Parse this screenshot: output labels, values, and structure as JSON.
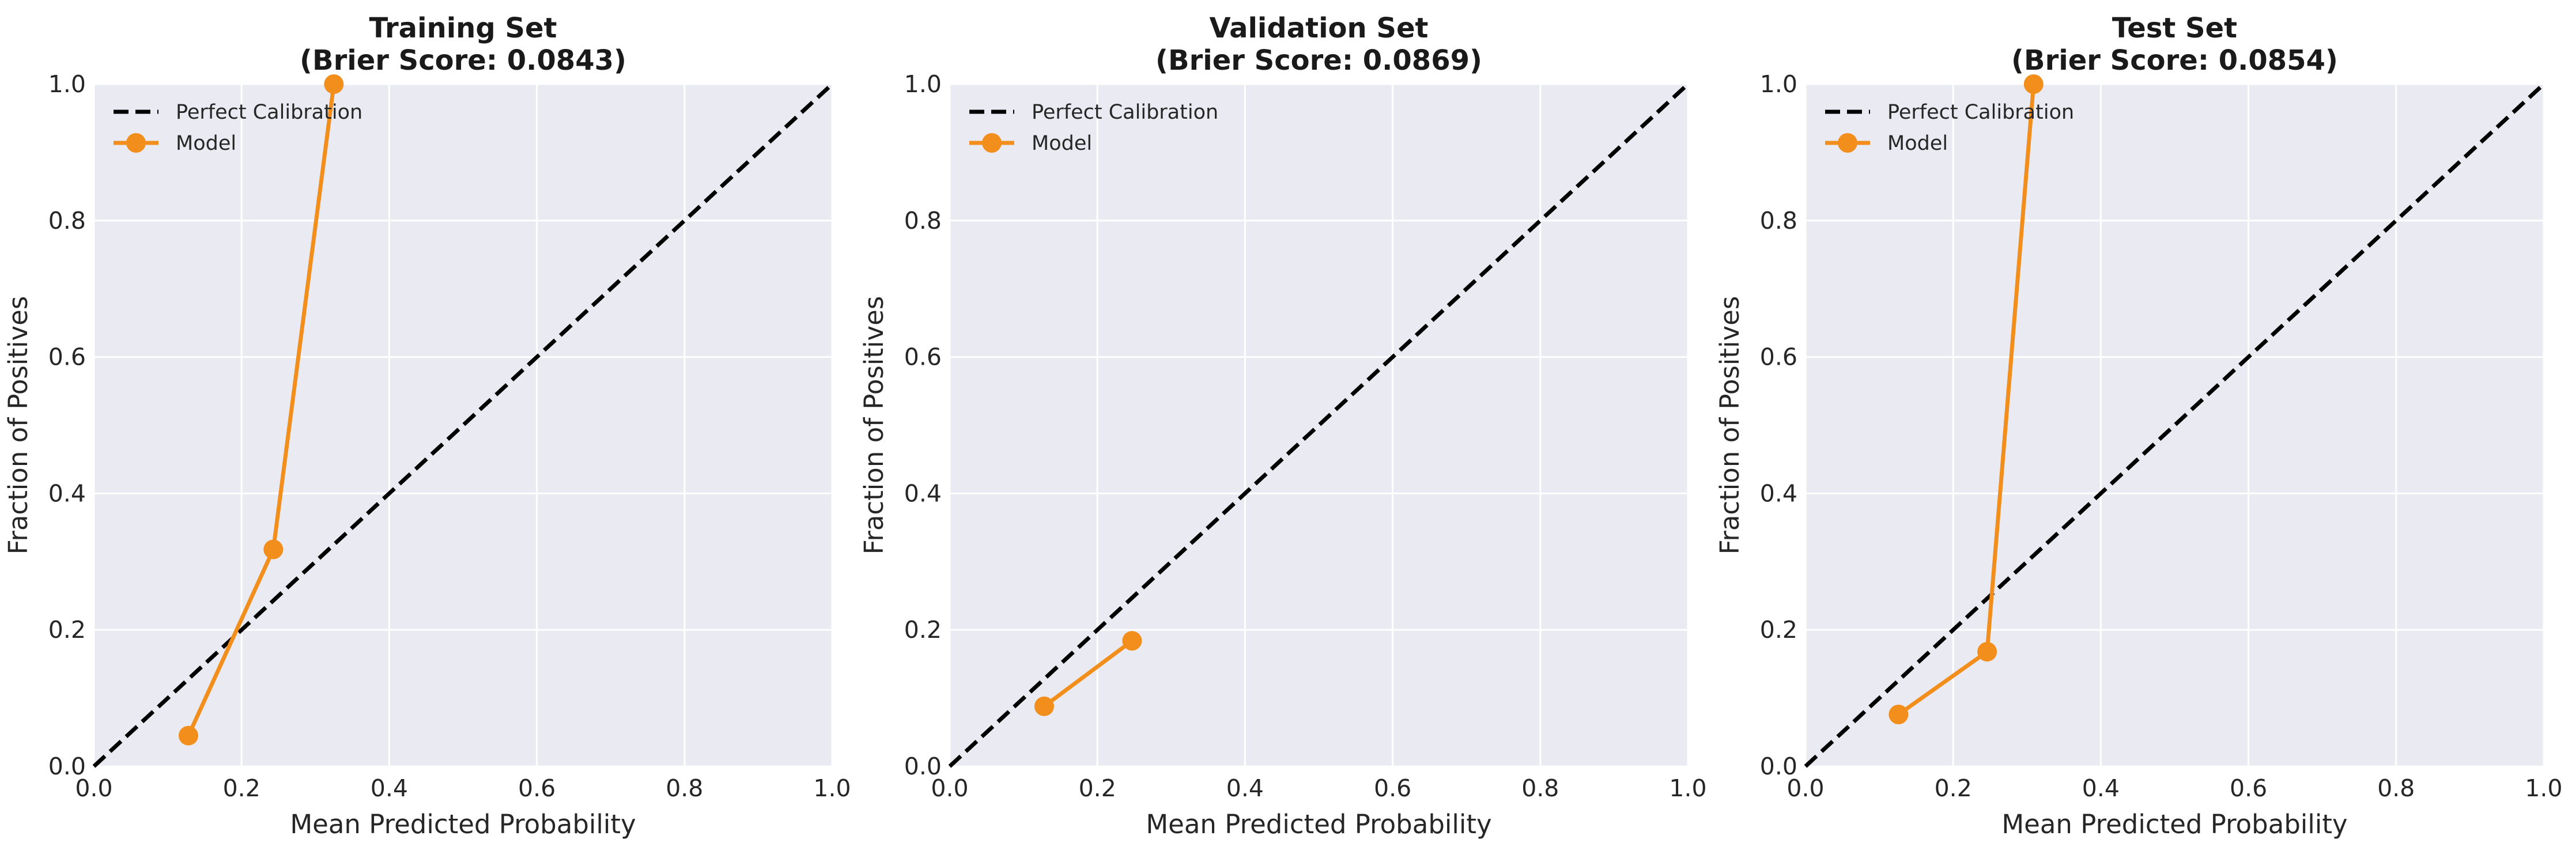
{
  "chart_data": [
    {
      "type": "line",
      "title": "Training Set",
      "subtitle": "(Brier Score: 0.0843)",
      "xlabel": "Mean Predicted Probability",
      "ylabel": "Fraction of Positives",
      "xlim": [
        0.0,
        1.0
      ],
      "ylim": [
        0.0,
        1.0
      ],
      "xticks": [
        "0.0",
        "0.2",
        "0.4",
        "0.6",
        "0.8",
        "1.0"
      ],
      "yticks": [
        "0.0",
        "0.2",
        "0.4",
        "0.6",
        "0.8",
        "1.0"
      ],
      "grid": true,
      "legend_position": "top-left",
      "series": [
        {
          "name": "Perfect Calibration",
          "style": "dashed",
          "color": "#000000",
          "x": [
            0.0,
            1.0
          ],
          "y": [
            0.0,
            1.0
          ]
        },
        {
          "name": "Model",
          "style": "solid-markers",
          "color": "#f28e1c",
          "x": [
            0.128,
            0.243,
            0.325
          ],
          "y": [
            0.045,
            0.318,
            1.0
          ]
        }
      ]
    },
    {
      "type": "line",
      "title": "Validation Set",
      "subtitle": "(Brier Score: 0.0869)",
      "xlabel": "Mean Predicted Probability",
      "ylabel": "Fraction of Positives",
      "xlim": [
        0.0,
        1.0
      ],
      "ylim": [
        0.0,
        1.0
      ],
      "xticks": [
        "0.0",
        "0.2",
        "0.4",
        "0.6",
        "0.8",
        "1.0"
      ],
      "yticks": [
        "0.0",
        "0.2",
        "0.4",
        "0.6",
        "0.8",
        "1.0"
      ],
      "grid": true,
      "legend_position": "top-left",
      "series": [
        {
          "name": "Perfect Calibration",
          "style": "dashed",
          "color": "#000000",
          "x": [
            0.0,
            1.0
          ],
          "y": [
            0.0,
            1.0
          ]
        },
        {
          "name": "Model",
          "style": "solid-markers",
          "color": "#f28e1c",
          "x": [
            0.128,
            0.247
          ],
          "y": [
            0.088,
            0.184
          ]
        }
      ]
    },
    {
      "type": "line",
      "title": "Test Set",
      "subtitle": "(Brier Score: 0.0854)",
      "xlabel": "Mean Predicted Probability",
      "ylabel": "Fraction of Positives",
      "xlim": [
        0.0,
        1.0
      ],
      "ylim": [
        0.0,
        1.0
      ],
      "xticks": [
        "0.0",
        "0.2",
        "0.4",
        "0.6",
        "0.8",
        "1.0"
      ],
      "yticks": [
        "0.0",
        "0.2",
        "0.4",
        "0.6",
        "0.8",
        "1.0"
      ],
      "grid": true,
      "legend_position": "top-left",
      "series": [
        {
          "name": "Perfect Calibration",
          "style": "dashed",
          "color": "#000000",
          "x": [
            0.0,
            1.0
          ],
          "y": [
            0.0,
            1.0
          ]
        },
        {
          "name": "Model",
          "style": "solid-markers",
          "color": "#f28e1c",
          "x": [
            0.126,
            0.246,
            0.309
          ],
          "y": [
            0.076,
            0.168,
            1.0
          ]
        }
      ]
    }
  ]
}
